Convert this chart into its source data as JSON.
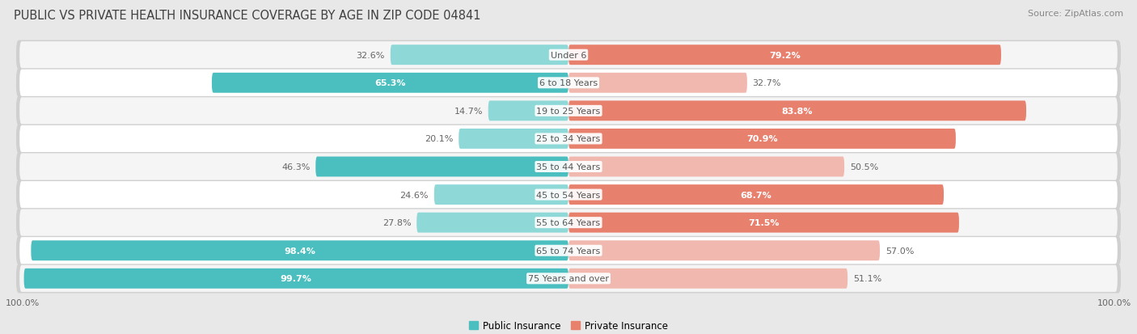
{
  "title": "PUBLIC VS PRIVATE HEALTH INSURANCE COVERAGE BY AGE IN ZIP CODE 04841",
  "source": "Source: ZipAtlas.com",
  "categories": [
    "Under 6",
    "6 to 18 Years",
    "19 to 25 Years",
    "25 to 34 Years",
    "35 to 44 Years",
    "45 to 54 Years",
    "55 to 64 Years",
    "65 to 74 Years",
    "75 Years and over"
  ],
  "public_values": [
    32.6,
    65.3,
    14.7,
    20.1,
    46.3,
    24.6,
    27.8,
    98.4,
    99.7
  ],
  "private_values": [
    79.2,
    32.7,
    83.8,
    70.9,
    50.5,
    68.7,
    71.5,
    57.0,
    51.1
  ],
  "public_color": "#4bbfbf",
  "private_color": "#e8806e",
  "public_color_light": "#8ed8d8",
  "private_color_light": "#f0b8ae",
  "bg_color": "#e8e8e8",
  "row_bg_even": "#f5f5f5",
  "row_bg_odd": "#ffffff",
  "row_border": "#d0d0d0",
  "title_color": "#404040",
  "source_color": "#888888",
  "label_color_dark": "#666666",
  "label_color_white": "#ffffff",
  "center_label_color": "#555555",
  "title_fontsize": 10.5,
  "source_fontsize": 8,
  "label_fontsize": 8,
  "legend_fontsize": 8.5,
  "category_fontsize": 8,
  "public_white_threshold": 50,
  "private_white_threshold": 60,
  "public_dark_threshold": 45,
  "private_dark_threshold": 45
}
